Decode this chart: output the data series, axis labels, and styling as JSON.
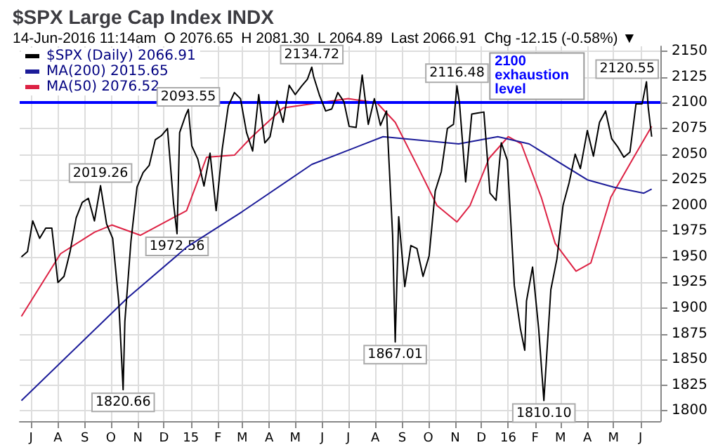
{
  "chart_data": {
    "type": "line",
    "title": "$SPX Large Cap Index INDX",
    "subtitle": "14-Jun-2016 11:14am  O 2076.65  H 2081.30  L 2064.89  Last 2066.91  Chg -12.15 (-0.58%) ▼",
    "series": [
      {
        "name": "$SPX (Daily) 2066.91",
        "color": "#000000",
        "x": [
          "2014-06-20",
          "2014-06-27",
          "2014-07-03",
          "2014-07-11",
          "2014-07-18",
          "2014-07-25",
          "2014-08-01",
          "2014-08-08",
          "2014-08-15",
          "2014-08-22",
          "2014-08-29",
          "2014-09-05",
          "2014-09-12",
          "2014-09-19",
          "2014-09-26",
          "2014-10-03",
          "2014-10-10",
          "2014-10-15",
          "2014-10-17",
          "2014-10-24",
          "2014-10-31",
          "2014-11-07",
          "2014-11-14",
          "2014-11-21",
          "2014-11-28",
          "2014-12-05",
          "2014-12-12",
          "2014-12-16",
          "2014-12-19",
          "2014-12-26",
          "2014-12-29",
          "2015-01-02",
          "2015-01-09",
          "2015-01-16",
          "2015-01-23",
          "2015-01-30",
          "2015-02-06",
          "2015-02-13",
          "2015-02-20",
          "2015-02-27",
          "2015-03-06",
          "2015-03-13",
          "2015-03-20",
          "2015-03-27",
          "2015-04-02",
          "2015-04-10",
          "2015-04-17",
          "2015-04-24",
          "2015-05-01",
          "2015-05-08",
          "2015-05-15",
          "2015-05-20",
          "2015-05-22",
          "2015-05-29",
          "2015-06-05",
          "2015-06-12",
          "2015-06-19",
          "2015-06-26",
          "2015-07-02",
          "2015-07-10",
          "2015-07-17",
          "2015-07-24",
          "2015-07-31",
          "2015-08-07",
          "2015-08-14",
          "2015-08-21",
          "2015-08-24",
          "2015-08-28",
          "2015-09-04",
          "2015-09-11",
          "2015-09-18",
          "2015-09-25",
          "2015-10-02",
          "2015-10-09",
          "2015-10-16",
          "2015-10-23",
          "2015-10-30",
          "2015-11-03",
          "2015-11-06",
          "2015-11-13",
          "2015-11-20",
          "2015-11-27",
          "2015-12-04",
          "2015-12-11",
          "2015-12-18",
          "2015-12-24",
          "2015-12-31",
          "2016-01-08",
          "2016-01-15",
          "2016-01-20",
          "2016-01-22",
          "2016-01-29",
          "2016-02-05",
          "2016-02-11",
          "2016-02-19",
          "2016-02-26",
          "2016-03-04",
          "2016-03-11",
          "2016-03-18",
          "2016-03-24",
          "2016-04-01",
          "2016-04-08",
          "2016-04-15",
          "2016-04-22",
          "2016-04-29",
          "2016-05-06",
          "2016-05-13",
          "2016-05-20",
          "2016-05-27",
          "2016-06-03",
          "2016-06-08",
          "2016-06-10",
          "2016-06-14"
        ],
        "values": [
          1950,
          1955,
          1985,
          1968,
          1978,
          1978,
          1925,
          1931,
          1955,
          1988,
          2003,
          2007,
          1985,
          2019.26,
          1982,
          1968,
          1906,
          1820.66,
          1887,
          1965,
          2018,
          2032,
          2039,
          2064,
          2068,
          2075,
          2002,
          1972.56,
          2071,
          2088,
          2093.55,
          2058,
          2045,
          2019,
          2051,
          1995,
          2055,
          2097,
          2110,
          2104,
          2071,
          2053,
          2108,
          2061,
          2067,
          2102,
          2081,
          2117,
          2108,
          2116,
          2123,
          2134.72,
          2126,
          2107,
          2092,
          2094,
          2110,
          2101,
          2077,
          2076,
          2127,
          2079,
          2104,
          2078,
          2092,
          1971,
          1867.01,
          1989,
          1921,
          1961,
          1958,
          1931,
          1951,
          2014,
          2033,
          2075,
          2079,
          2116.48,
          2099,
          2023,
          2089,
          2090,
          2091,
          2012,
          2005,
          2061,
          2044,
          1922,
          1880,
          1859,
          1907,
          1940,
          1880,
          1810.1,
          1918,
          1948,
          2000,
          2022,
          2050,
          2036,
          2073,
          2048,
          2081,
          2092,
          2065,
          2057,
          2047,
          2052,
          2099,
          2099,
          2120.55,
          2096,
          2067
        ]
      },
      {
        "name": "MA(200) 2015.65",
        "color": "#1c1c99",
        "x": [
          "2014-06-20",
          "2014-10-20",
          "2014-12-28",
          "2015-03-01",
          "2015-05-20",
          "2015-08-10",
          "2015-11-05",
          "2015-12-20",
          "2016-01-25",
          "2016-04-01",
          "2016-05-01",
          "2016-06-05",
          "2016-06-14"
        ],
        "values": [
          1810,
          1910,
          1960,
          1994,
          2040,
          2067,
          2060,
          2067,
          2060,
          2025,
          2018,
          2012,
          2016
        ]
      },
      {
        "name": "MA(50) 2076.52",
        "color": "#dd2244",
        "x": [
          "2014-06-20",
          "2014-08-04",
          "2014-09-12",
          "2014-10-02",
          "2014-11-04",
          "2014-12-27",
          "2015-01-19",
          "2015-02-20",
          "2015-03-11",
          "2015-04-17",
          "2015-07-01",
          "2015-08-03",
          "2015-08-24",
          "2015-09-20",
          "2015-10-11",
          "2015-11-03",
          "2015-11-18",
          "2015-12-10",
          "2016-01-01",
          "2016-01-16",
          "2016-02-08",
          "2016-02-24",
          "2016-03-19",
          "2016-04-05",
          "2016-04-28",
          "2016-05-23",
          "2016-06-14"
        ],
        "values": [
          1892,
          1953,
          1974,
          1981,
          1971,
          1995,
          2047,
          2049,
          2066,
          2095,
          2104,
          2100,
          2081,
          2036,
          2000,
          1984,
          2000,
          2046,
          2067,
          2060,
          2008,
          1963,
          1936,
          1944,
          2008,
          2045,
          2077
        ]
      }
    ],
    "annotations": [
      {
        "text": "2019.26",
        "x": "2014-09-19",
        "y": 2019.26
      },
      {
        "text": "1820.66",
        "x": "2014-10-15",
        "y": 1820.66
      },
      {
        "text": "1972.56",
        "x": "2014-12-16",
        "y": 1972.56
      },
      {
        "text": "2093.55",
        "x": "2014-12-29",
        "y": 2093.55
      },
      {
        "text": "2134.72",
        "x": "2015-05-20",
        "y": 2134.72
      },
      {
        "text": "1867.01",
        "x": "2015-08-24",
        "y": 1867.01
      },
      {
        "text": "2116.48",
        "x": "2015-11-03",
        "y": 2116.48
      },
      {
        "text": "1810.10",
        "x": "2016-02-11",
        "y": 1810.1
      },
      {
        "text": "2120.55",
        "x": "2016-06-08",
        "y": 2120.55
      }
    ],
    "ref_lines": [
      {
        "axis": "y",
        "value": 2100,
        "label": "2100 exhaustion level",
        "color": "#0000ff"
      }
    ],
    "xlim": [
      "2014-06-18",
      "2016-06-24"
    ],
    "xticks": [
      {
        "value": "2014-07",
        "label": "J"
      },
      {
        "value": "2014-08",
        "label": "A"
      },
      {
        "value": "2014-09",
        "label": "S"
      },
      {
        "value": "2014-10",
        "label": "O"
      },
      {
        "value": "2014-11",
        "label": "N"
      },
      {
        "value": "2014-12",
        "label": "D"
      },
      {
        "value": "2015-01",
        "label": "15"
      },
      {
        "value": "2015-02",
        "label": "F"
      },
      {
        "value": "2015-03",
        "label": "M"
      },
      {
        "value": "2015-04",
        "label": "A"
      },
      {
        "value": "2015-05",
        "label": "M"
      },
      {
        "value": "2015-06",
        "label": "J"
      },
      {
        "value": "2015-07",
        "label": "J"
      },
      {
        "value": "2015-08",
        "label": "A"
      },
      {
        "value": "2015-09",
        "label": "S"
      },
      {
        "value": "2015-10",
        "label": "O"
      },
      {
        "value": "2015-11",
        "label": "N"
      },
      {
        "value": "2015-12",
        "label": "D"
      },
      {
        "value": "2016-01",
        "label": "16"
      },
      {
        "value": "2016-02",
        "label": "F"
      },
      {
        "value": "2016-03",
        "label": "M"
      },
      {
        "value": "2016-04",
        "label": "A"
      },
      {
        "value": "2016-05",
        "label": "M"
      },
      {
        "value": "2016-06",
        "label": "J"
      }
    ],
    "ylim": [
      1790,
      2155
    ],
    "yticks": [
      1800,
      1825,
      1850,
      1875,
      1900,
      1925,
      1950,
      1975,
      2000,
      2025,
      2050,
      2075,
      2100,
      2125,
      2150
    ],
    "grid": true,
    "legend": "top left",
    "marker": "none"
  }
}
